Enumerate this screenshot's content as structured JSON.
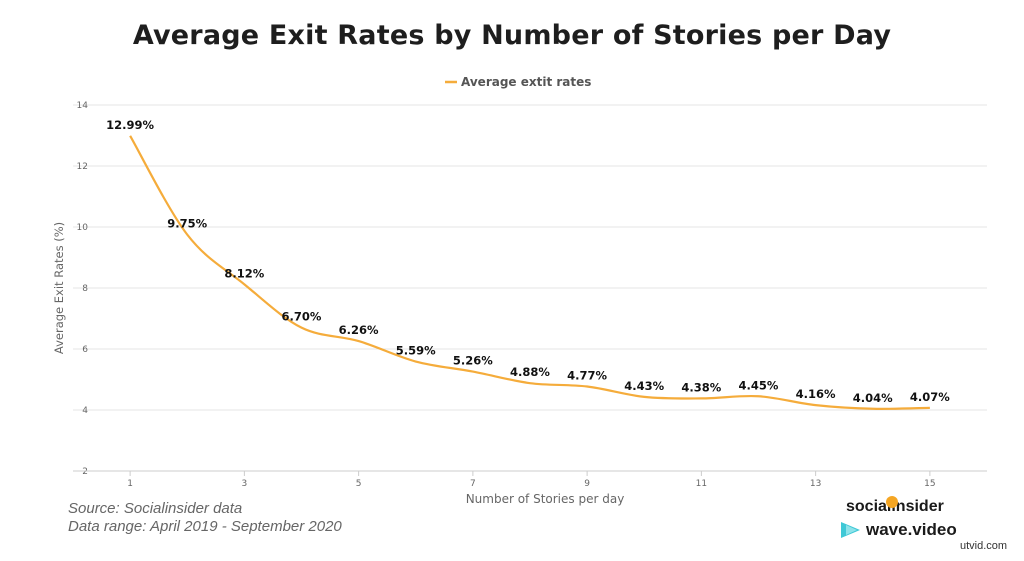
{
  "chart_data": {
    "type": "line",
    "title": "Average Exit Rates by Number of Stories per Day",
    "xlabel": "Number of Stories per day",
    "ylabel": "Average Exit Rates (%)",
    "x": [
      1,
      2,
      3,
      4,
      5,
      6,
      7,
      8,
      9,
      10,
      11,
      12,
      13,
      14,
      15
    ],
    "x_ticks": [
      1,
      3,
      5,
      7,
      9,
      11,
      13,
      15
    ],
    "xlim": [
      0,
      16
    ],
    "ylim": [
      2,
      14
    ],
    "y_ticks": [
      2,
      4,
      6,
      8,
      10,
      12,
      14
    ],
    "grid": true,
    "legend": "top-center",
    "series": [
      {
        "name": "Average extit rates",
        "color": "#f5ac3b",
        "values": [
          12.99,
          9.75,
          8.12,
          6.7,
          6.26,
          5.59,
          5.26,
          4.88,
          4.77,
          4.43,
          4.38,
          4.45,
          4.16,
          4.04,
          4.07
        ],
        "labels": [
          "12.99%",
          "9.75%",
          "8.12%",
          "6.70%",
          "6.26%",
          "5.59%",
          "5.26%",
          "4.88%",
          "4.77%",
          "4.43%",
          "4.38%",
          "4.45%",
          "4.16%",
          "4.04%",
          "4.07%"
        ]
      }
    ]
  },
  "footer": {
    "source": "Source: Socialinsider data",
    "range": "Data range: April 2019 - September 2020"
  },
  "brands": {
    "socialinsider": "socialinsider",
    "wave": "wave.video",
    "watermark": "utvid.com"
  }
}
